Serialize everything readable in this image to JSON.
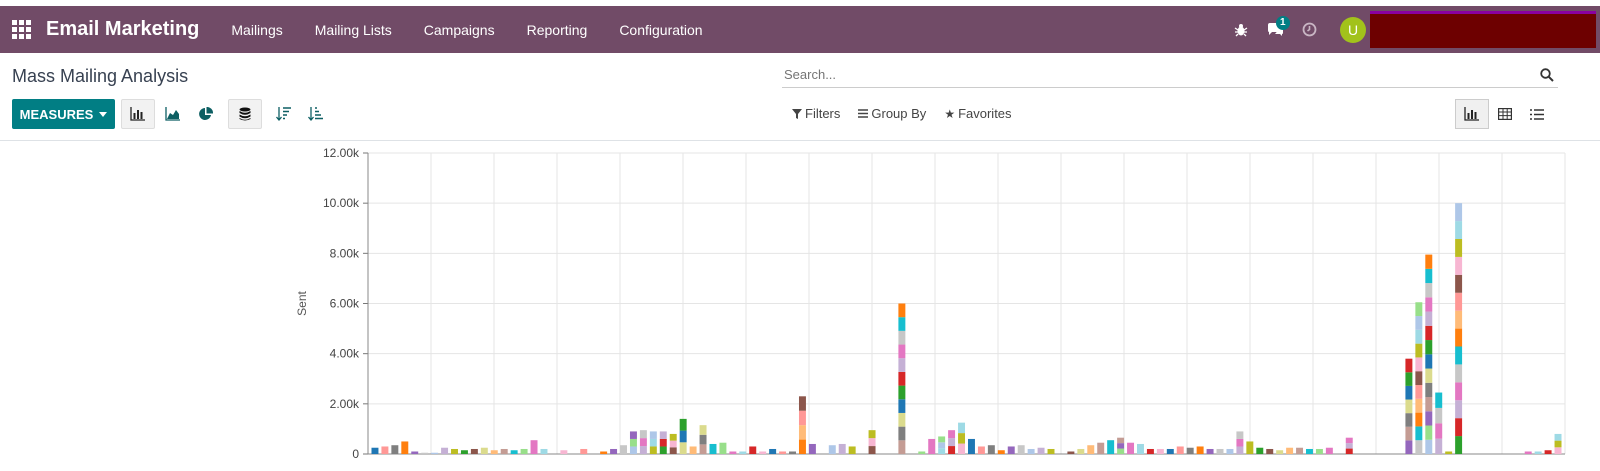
{
  "navbar": {
    "brand": "Email Marketing",
    "menu": [
      "Mailings",
      "Mailing Lists",
      "Campaigns",
      "Reporting",
      "Configuration"
    ],
    "messages_count": "1",
    "user_initial": "U"
  },
  "page": {
    "title": "Mass Mailing Analysis",
    "search_placeholder": "Search...",
    "measures_label": "MEASURES",
    "filters_label": "Filters",
    "groupby_label": "Group By",
    "favorites_label": "Favorites"
  },
  "colors": {
    "navbar": "#714b67",
    "primary": "#017e84",
    "avatar": "#a2c21b"
  },
  "chart_data": {
    "type": "bar",
    "stacked": true,
    "ylabel": "Sent",
    "ylim": [
      0,
      12000
    ],
    "yticks": [
      "0",
      "2.00k",
      "4.00k",
      "6.00k",
      "8.00k",
      "10.00k",
      "12.00k"
    ],
    "grid": true,
    "palette": [
      "#1f77b4",
      "#ff7f0e",
      "#aec7e8",
      "#2ca02c",
      "#ffbb78",
      "#98df8a",
      "#d62728",
      "#ff9896",
      "#9467bd",
      "#c5b0d5",
      "#8c564b",
      "#c49c94",
      "#e377c2",
      "#f7b6d2",
      "#7f7f7f",
      "#c7c7c7",
      "#bcbd22",
      "#dbdb8d",
      "#17becf",
      "#9edae5"
    ],
    "bars": [
      [
        250
      ],
      [
        300
      ],
      [
        350
      ],
      [
        500
      ],
      [
        100
      ],
      [
        50
      ],
      [
        50
      ],
      [
        250
      ],
      [
        200
      ],
      [
        150
      ],
      [
        200
      ],
      [
        250
      ],
      [
        150
      ],
      [
        200
      ],
      [
        150
      ],
      [
        200
      ],
      [
        550
      ],
      [
        200
      ],
      [
        0
      ],
      [
        150
      ],
      [
        0
      ],
      [
        200
      ],
      [
        0
      ],
      [
        100
      ],
      [
        200
      ],
      [
        350
      ],
      [
        900
      ],
      [
        950
      ],
      [
        900
      ],
      [
        900
      ],
      [
        800
      ],
      [
        1400
      ],
      [
        300
      ],
      [
        1150
      ],
      [
        400
      ],
      [
        450
      ],
      [
        100
      ],
      [
        100
      ],
      [
        300
      ],
      [
        100
      ],
      [
        200
      ],
      [
        100
      ],
      [
        100
      ],
      [
        2300
      ],
      [
        400
      ],
      [
        0
      ],
      [
        350
      ],
      [
        400
      ],
      [
        300
      ],
      [
        0
      ],
      [
        950
      ],
      [
        0
      ],
      [
        0
      ],
      [
        6000
      ],
      [
        0
      ],
      [
        100
      ],
      [
        600
      ],
      [
        700
      ],
      [
        950
      ],
      [
        1250
      ],
      [
        600
      ],
      [
        300
      ],
      [
        350
      ],
      [
        150
      ],
      [
        300
      ],
      [
        350
      ],
      [
        200
      ],
      [
        250
      ],
      [
        200
      ],
      [
        0
      ],
      [
        100
      ],
      [
        200
      ],
      [
        350
      ],
      [
        450
      ],
      [
        550
      ],
      [
        650
      ],
      [
        450
      ],
      [
        400
      ],
      [
        200
      ],
      [
        200
      ],
      [
        200
      ],
      [
        300
      ],
      [
        250
      ],
      [
        300
      ],
      [
        200
      ],
      [
        200
      ],
      [
        200
      ],
      [
        900
      ],
      [
        500
      ],
      [
        250
      ],
      [
        200
      ],
      [
        150
      ],
      [
        250
      ],
      [
        250
      ],
      [
        200
      ],
      [
        200
      ],
      [
        250
      ],
      [
        0
      ],
      [
        650
      ],
      [
        0
      ],
      [
        0
      ],
      [
        0
      ],
      [
        0
      ],
      [
        0
      ],
      [
        3800
      ],
      [
        6050
      ],
      [
        7950
      ],
      [
        2450
      ],
      [
        100
      ],
      [
        10000
      ],
      [
        0
      ],
      [
        0
      ],
      [
        0
      ],
      [
        0
      ],
      [
        0
      ],
      [
        0
      ],
      [
        100
      ],
      [
        100
      ],
      [
        150
      ],
      [
        800
      ]
    ]
  }
}
